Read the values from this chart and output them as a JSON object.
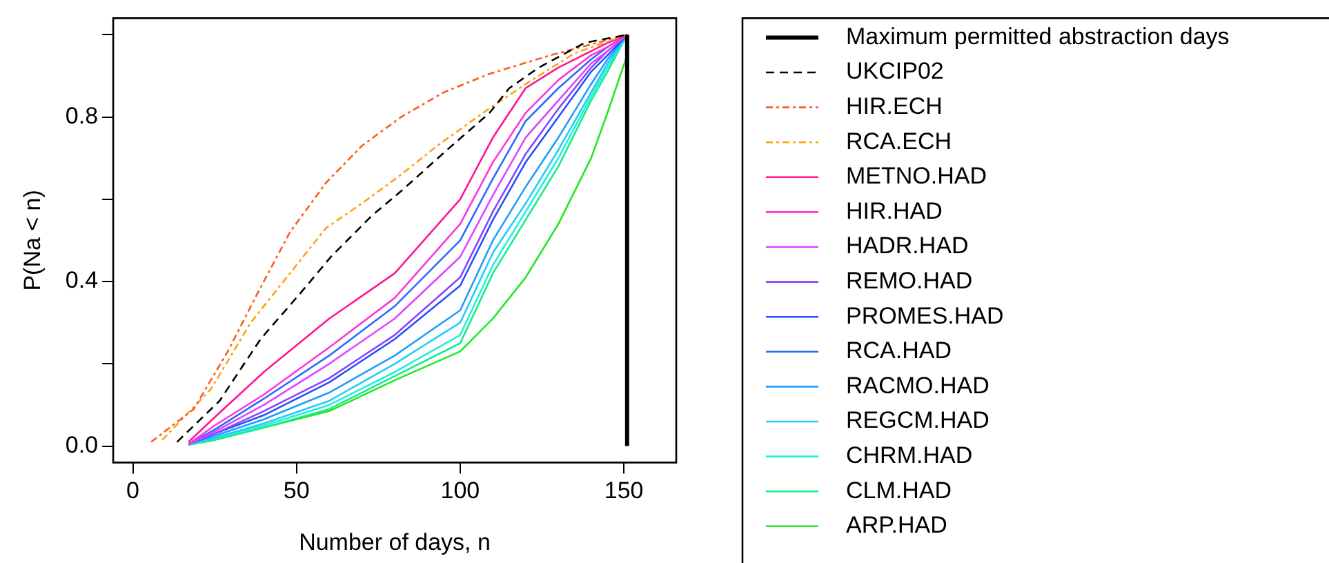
{
  "chart_data": {
    "type": "line",
    "xlabel": "Number of days, n",
    "ylabel": "P(Na < n)",
    "xlim": [
      -6,
      166
    ],
    "ylim": [
      -0.04,
      1.04
    ],
    "xticks": [
      0,
      50,
      100,
      150
    ],
    "yticks": [
      {
        "value": 0,
        "label": "0.0"
      },
      {
        "value": 0.2,
        "label": null
      },
      0.4,
      {
        "value": 0.6,
        "label": null
      },
      0.8,
      {
        "value": 1,
        "label": null
      }
    ],
    "grid": false,
    "legend": "right",
    "marker": "none",
    "series": [
      {
        "name": "Maximum permitted abstraction days",
        "type": "line",
        "color": "#000000",
        "line_style": "solid",
        "x": [
          151,
          151
        ],
        "values": [
          0,
          1
        ]
      },
      {
        "name": "UKCIP02",
        "color": "#000000",
        "line_style": "dashed",
        "x": [
          13.5,
          26.5,
          39,
          51,
          60.5,
          73,
          82,
          96,
          109,
          115,
          124,
          138,
          151
        ],
        "values": [
          0.01,
          0.11,
          0.26,
          0.37,
          0.46,
          0.56,
          0.62,
          0.72,
          0.81,
          0.87,
          0.92,
          0.98,
          1
        ]
      },
      {
        "name": "HIR.ECH",
        "color": "#ff5a1e",
        "line_style": "dashdot",
        "x": [
          5.6,
          18.6,
          29,
          38,
          48,
          59,
          70,
          82,
          95,
          109,
          127.6,
          151
        ],
        "values": [
          0.01,
          0.09,
          0.23,
          0.37,
          0.52,
          0.64,
          0.73,
          0.8,
          0.86,
          0.905,
          0.95,
          1
        ]
      },
      {
        "name": "RCA.ECH",
        "color": "#ffa010",
        "line_style": "dashdot",
        "x": [
          9,
          24,
          36,
          48,
          59,
          70,
          82,
          93,
          107,
          120,
          135,
          151
        ],
        "values": [
          0.015,
          0.14,
          0.3,
          0.42,
          0.53,
          0.59,
          0.66,
          0.73,
          0.81,
          0.88,
          0.955,
          1
        ]
      },
      {
        "name": "METNO.HAD",
        "color": "#ff1493",
        "line_style": "solid",
        "x": [
          17,
          25,
          40,
          60,
          80,
          100,
          110,
          120,
          130,
          140,
          145,
          151
        ],
        "values": [
          0.01,
          0.07,
          0.18,
          0.31,
          0.42,
          0.6,
          0.75,
          0.87,
          0.92,
          0.96,
          0.98,
          1
        ]
      },
      {
        "name": "HIR.HAD",
        "color": "#ff33dd",
        "line_style": "solid",
        "x": [
          17,
          25,
          40,
          60,
          80,
          100,
          110,
          120,
          130,
          140,
          145,
          151
        ],
        "values": [
          0.005,
          0.05,
          0.125,
          0.24,
          0.36,
          0.54,
          0.69,
          0.81,
          0.89,
          0.95,
          0.97,
          1
        ]
      },
      {
        "name": "HADR.HAD",
        "color": "#dd44ff",
        "line_style": "solid",
        "x": [
          17,
          25,
          40,
          60,
          80,
          100,
          110,
          120,
          130,
          140,
          145,
          151
        ],
        "values": [
          0.005,
          0.035,
          0.1,
          0.2,
          0.31,
          0.46,
          0.61,
          0.75,
          0.84,
          0.93,
          0.96,
          1
        ]
      },
      {
        "name": "REMO.HAD",
        "color": "#8844ff",
        "line_style": "solid",
        "x": [
          17,
          25,
          40,
          60,
          80,
          100,
          110,
          120,
          130,
          140,
          145,
          151
        ],
        "values": [
          0.005,
          0.03,
          0.085,
          0.165,
          0.27,
          0.41,
          0.57,
          0.71,
          0.82,
          0.92,
          0.96,
          1
        ]
      },
      {
        "name": "PROMES.HAD",
        "color": "#2450ff",
        "line_style": "solid",
        "x": [
          17,
          25,
          40,
          60,
          80,
          100,
          110,
          120,
          130,
          140,
          145,
          151
        ],
        "values": [
          0.005,
          0.03,
          0.075,
          0.155,
          0.26,
          0.39,
          0.55,
          0.69,
          0.8,
          0.91,
          0.95,
          1
        ]
      },
      {
        "name": "RCA.HAD",
        "color": "#2a6aff",
        "line_style": "solid",
        "x": [
          17,
          25,
          40,
          60,
          80,
          100,
          110,
          120,
          130,
          140,
          145,
          151
        ],
        "values": [
          0.005,
          0.04,
          0.115,
          0.22,
          0.34,
          0.5,
          0.65,
          0.79,
          0.87,
          0.94,
          0.97,
          1
        ]
      },
      {
        "name": "RACMO.HAD",
        "color": "#1e9cff",
        "line_style": "solid",
        "x": [
          17,
          25,
          40,
          60,
          80,
          100,
          110,
          120,
          130,
          140,
          145,
          151
        ],
        "values": [
          0.005,
          0.025,
          0.065,
          0.13,
          0.22,
          0.33,
          0.5,
          0.63,
          0.75,
          0.88,
          0.94,
          1
        ]
      },
      {
        "name": "REGCM.HAD",
        "color": "#22ccff",
        "line_style": "solid",
        "x": [
          17,
          25,
          40,
          60,
          80,
          100,
          110,
          120,
          130,
          140,
          145,
          151
        ],
        "values": [
          0.005,
          0.02,
          0.055,
          0.11,
          0.2,
          0.3,
          0.47,
          0.59,
          0.72,
          0.86,
          0.93,
          1
        ]
      },
      {
        "name": "CHRM.HAD",
        "color": "#22eedd",
        "line_style": "solid",
        "x": [
          17,
          25,
          40,
          60,
          80,
          100,
          110,
          120,
          130,
          140,
          145,
          151
        ],
        "values": [
          0.003,
          0.02,
          0.05,
          0.1,
          0.18,
          0.27,
          0.44,
          0.57,
          0.7,
          0.85,
          0.92,
          1
        ]
      },
      {
        "name": "CLM.HAD",
        "color": "#11ee88",
        "line_style": "solid",
        "x": [
          17,
          25,
          40,
          60,
          80,
          100,
          110,
          120,
          130,
          140,
          145,
          151
        ],
        "values": [
          0.003,
          0.015,
          0.045,
          0.09,
          0.17,
          0.25,
          0.42,
          0.55,
          0.68,
          0.84,
          0.91,
          1
        ]
      },
      {
        "name": "ARP.HAD",
        "color": "#22e822",
        "line_style": "solid",
        "x": [
          17,
          25,
          40,
          60,
          80,
          100,
          110,
          120,
          130,
          140,
          145,
          151
        ],
        "values": [
          0.003,
          0.015,
          0.045,
          0.085,
          0.16,
          0.23,
          0.31,
          0.41,
          0.54,
          0.7,
          0.81,
          0.95
        ]
      }
    ]
  }
}
